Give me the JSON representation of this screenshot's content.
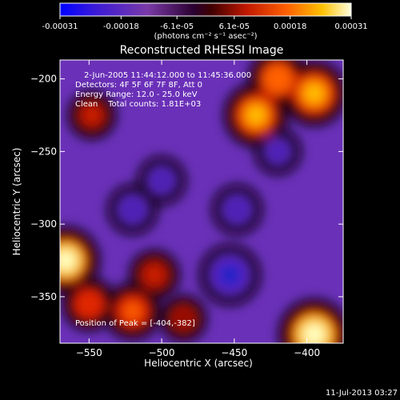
{
  "colorbar": {
    "ticks": [
      "-0.00031",
      "-0.00018",
      "-6.1e-05",
      "6.1e-05",
      "0.00018",
      "0.00031"
    ],
    "unit": "(photons cm⁻² s⁻¹ asec⁻²)",
    "range": [
      -0.00031,
      0.00031
    ]
  },
  "plot": {
    "title": "Reconstructed RHESSI Image",
    "annotations": [
      "2-Jun-2005 11:44:12.000 to 11:45:36.000",
      "Detectors: 4F 5F 6F 7F 8F, Att 0",
      "Energy Range: 12.0 - 25.0 keV",
      "Clean    Total counts: 1.81E+03"
    ],
    "peak_label": "Position of Peak = [-404,-382]",
    "footer_date": "11-Jul-2013 03:27"
  },
  "chart_data": {
    "type": "heatmap",
    "title": "Reconstructed RHESSI Image",
    "xlabel": "Heliocentric X (arcsec)",
    "ylabel": "Heliocentric Y (arcsec)",
    "xlim": [
      -570,
      -375
    ],
    "ylim": [
      -382,
      -187
    ],
    "x_ticks": [
      -550,
      -500,
      -450,
      -400
    ],
    "x_tick_labels": [
      "−550",
      "−500",
      "−450",
      "−400"
    ],
    "y_ticks": [
      -200,
      -250,
      -300,
      -350
    ],
    "y_tick_labels": [
      "−200",
      "−250",
      "−300",
      "−350"
    ],
    "peak_position": [
      -404,
      -382
    ],
    "total_counts": 1810,
    "energy_range_kev": [
      12.0,
      25.0
    ],
    "value_range": [
      -0.00031,
      0.00031
    ],
    "colormap": [
      "#1a0aa0",
      "#4b18c8",
      "#6e2ec8",
      "#7a3aa8",
      "#000000",
      "#5a0000",
      "#c01800",
      "#ff6000",
      "#ffc000",
      "#ffffe0"
    ],
    "bright_sources": [
      {
        "x": -395,
        "y": -376,
        "level": 0.95
      },
      {
        "x": -566,
        "y": -325,
        "level": 0.85
      },
      {
        "x": -395,
        "y": -210,
        "level": 0.78
      },
      {
        "x": -435,
        "y": -225,
        "level": 0.75
      },
      {
        "x": -420,
        "y": -200,
        "level": 0.6
      },
      {
        "x": -520,
        "y": -360,
        "level": 0.55
      },
      {
        "x": -550,
        "y": -355,
        "level": 0.45
      },
      {
        "x": -505,
        "y": -335,
        "level": 0.35
      },
      {
        "x": -485,
        "y": -365,
        "level": 0.25
      },
      {
        "x": -548,
        "y": -225,
        "level": 0.3
      }
    ],
    "dim_regions": [
      {
        "x": -453,
        "y": -335,
        "level": -0.65
      },
      {
        "x": -448,
        "y": -290,
        "level": -0.35
      },
      {
        "x": -500,
        "y": -270,
        "level": -0.3
      },
      {
        "x": -520,
        "y": -290,
        "level": -0.35
      },
      {
        "x": -420,
        "y": -250,
        "level": -0.25
      }
    ]
  }
}
